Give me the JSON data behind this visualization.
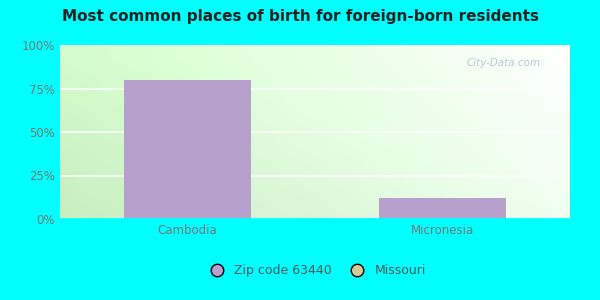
{
  "title": "Most common places of birth for foreign-born residents",
  "categories": [
    "Cambodia",
    "Micronesia"
  ],
  "zip_values": [
    80,
    12
  ],
  "mo_values": [
    0,
    0
  ],
  "zip_color": "#b8a0cc",
  "mo_color": "#d4cc96",
  "background_color": "#00ffff",
  "plot_bg_left": "#c8eec0",
  "plot_bg_right": "#f0fff0",
  "yticks": [
    0,
    25,
    50,
    75,
    100
  ],
  "ytick_labels": [
    "0%",
    "25%",
    "50%",
    "75%",
    "100%"
  ],
  "legend_labels": [
    "Zip code 63440",
    "Missouri"
  ],
  "bar_width": 0.5,
  "title_fontsize": 11,
  "tick_fontsize": 8.5,
  "legend_fontsize": 9
}
